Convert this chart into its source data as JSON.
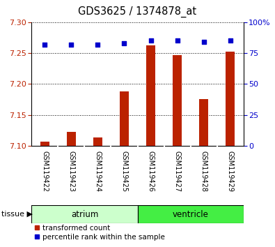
{
  "title": "GDS3625 / 1374878_at",
  "samples": [
    "GSM119422",
    "GSM119423",
    "GSM119424",
    "GSM119425",
    "GSM119426",
    "GSM119427",
    "GSM119428",
    "GSM119429"
  ],
  "transformed_count": [
    7.107,
    7.123,
    7.113,
    7.188,
    7.263,
    7.247,
    7.175,
    7.252
  ],
  "percentile_rank": [
    82,
    82,
    82,
    83,
    85,
    85,
    84,
    85
  ],
  "ylim_left": [
    7.1,
    7.3
  ],
  "ylim_right": [
    0,
    100
  ],
  "yticks_left": [
    7.1,
    7.15,
    7.2,
    7.25,
    7.3
  ],
  "yticks_right": [
    0,
    25,
    50,
    75,
    100
  ],
  "bar_color": "#BB2200",
  "dot_color": "#0000CC",
  "atrium_color": "#CCFFCC",
  "ventricle_color": "#44EE44",
  "sample_box_color": "#C8C8C8",
  "tissue_groups": [
    {
      "label": "atrium",
      "indices": [
        0,
        1,
        2,
        3
      ]
    },
    {
      "label": "ventricle",
      "indices": [
        4,
        5,
        6,
        7
      ]
    }
  ],
  "bg_color": "#FFFFFF",
  "bar_width": 0.35,
  "dot_size": 22,
  "legend_red_label": "transformed count",
  "legend_blue_label": "percentile rank within the sample",
  "base_value": 7.1
}
